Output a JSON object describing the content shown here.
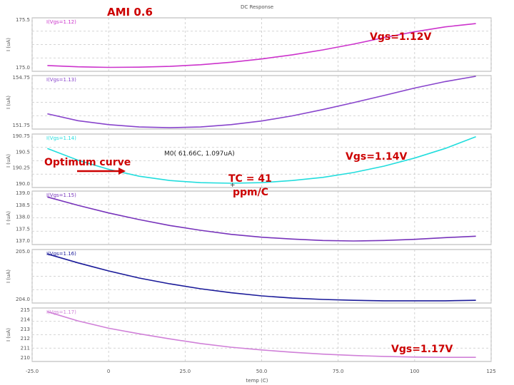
{
  "chart_data": {
    "type": "line",
    "title": "DC Response",
    "xlabel": "temp (C)",
    "xlim": [
      -25,
      125
    ],
    "x_ticks": [
      "-25.0",
      "0",
      "25.0",
      "50.0",
      "75.0",
      "100",
      "125"
    ],
    "grid": true,
    "panels": [
      {
        "legend": "I(Vgs=1.12)",
        "color": "#cc33cc",
        "ylabel": "I (uA)",
        "y_ticks": [
          "175.5",
          "175.0"
        ],
        "ylim": [
          174.95,
          175.6
        ],
        "x": [
          -20,
          -10,
          0,
          10,
          20,
          30,
          40,
          50,
          60,
          70,
          80,
          90,
          100,
          110,
          120
        ],
        "values": [
          175.02,
          175.005,
          174.998,
          175.0,
          175.01,
          175.03,
          175.06,
          175.1,
          175.15,
          175.21,
          175.28,
          175.36,
          175.43,
          175.49,
          175.53
        ]
      },
      {
        "legend": "I(Vgs=1.13)",
        "color": "#8844cc",
        "ylabel": "I (uA)",
        "y_ticks": [
          "154.75",
          "151.75"
        ],
        "ylim": [
          151.0,
          154.85
        ],
        "x": [
          -20,
          -10,
          0,
          10,
          20,
          30,
          40,
          50,
          60,
          70,
          80,
          90,
          100,
          110,
          120
        ],
        "values": [
          152.1,
          151.6,
          151.32,
          151.15,
          151.1,
          151.15,
          151.32,
          151.58,
          151.95,
          152.4,
          152.9,
          153.42,
          153.95,
          154.42,
          154.8
        ]
      },
      {
        "legend": "I(Vgs=1.14)",
        "color": "#22dddd",
        "ylabel": "I (uA)",
        "y_ticks": [
          "190.75",
          "190.5",
          "190.25",
          "190.0"
        ],
        "ylim": [
          189.95,
          190.95
        ],
        "x": [
          -20,
          -10,
          0,
          10,
          20,
          30,
          40,
          50,
          60,
          70,
          80,
          90,
          100,
          110,
          120
        ],
        "values": [
          190.68,
          190.46,
          190.29,
          190.16,
          190.08,
          190.04,
          190.03,
          190.04,
          190.08,
          190.14,
          190.23,
          190.35,
          190.5,
          190.68,
          190.9
        ]
      },
      {
        "legend": "I(Vgs=1.15)",
        "color": "#7733bb",
        "ylabel": "I (uA)",
        "y_ticks": [
          "139.0",
          "138.5",
          "138.0",
          "137.5",
          "137.0"
        ],
        "ylim": [
          136.95,
          139.2
        ],
        "x": [
          -20,
          -10,
          0,
          10,
          20,
          30,
          40,
          50,
          60,
          70,
          80,
          90,
          100,
          110,
          120
        ],
        "values": [
          138.95,
          138.6,
          138.28,
          138.0,
          137.75,
          137.55,
          137.38,
          137.26,
          137.18,
          137.12,
          137.1,
          137.12,
          137.17,
          137.24,
          137.3
        ]
      },
      {
        "legend": "I(Vgs=1.16)",
        "color": "#1a1a99",
        "ylabel": "I (uA)",
        "y_ticks": [
          "205.0",
          "204.0"
        ],
        "ylim": [
          203.9,
          205.1
        ],
        "x": [
          -20,
          -10,
          0,
          10,
          20,
          30,
          40,
          50,
          60,
          70,
          80,
          90,
          100,
          110,
          120
        ],
        "values": [
          205.0,
          204.8,
          204.62,
          204.46,
          204.33,
          204.22,
          204.13,
          204.06,
          204.01,
          203.98,
          203.96,
          203.95,
          203.95,
          203.95,
          203.96
        ]
      },
      {
        "legend": "I(Vgs=1.17)",
        "color": "#d080d8",
        "ylabel": "I (uA)",
        "y_ticks": [
          "215",
          "214",
          "213",
          "212",
          "211",
          "210"
        ],
        "ylim": [
          209.6,
          215.4
        ],
        "x": [
          -20,
          -10,
          0,
          10,
          20,
          30,
          40,
          50,
          60,
          70,
          80,
          90,
          100,
          110,
          120
        ],
        "values": [
          215.0,
          214.0,
          213.2,
          212.6,
          212.05,
          211.55,
          211.15,
          210.85,
          210.6,
          210.4,
          210.25,
          210.15,
          210.08,
          210.05,
          210.05
        ]
      }
    ],
    "annotations": {
      "ami": "AMI 0.6",
      "vgs_112": "Vgs=1.12V",
      "vgs_114": "Vgs=1.14V",
      "vgs_117": "Vgs=1.17V",
      "optimum": "Optimum curve",
      "marker": "M0( 61.66C, 1.097uA)",
      "tc_line1": "TC = 41",
      "tc_line2": "ppm/C"
    }
  }
}
